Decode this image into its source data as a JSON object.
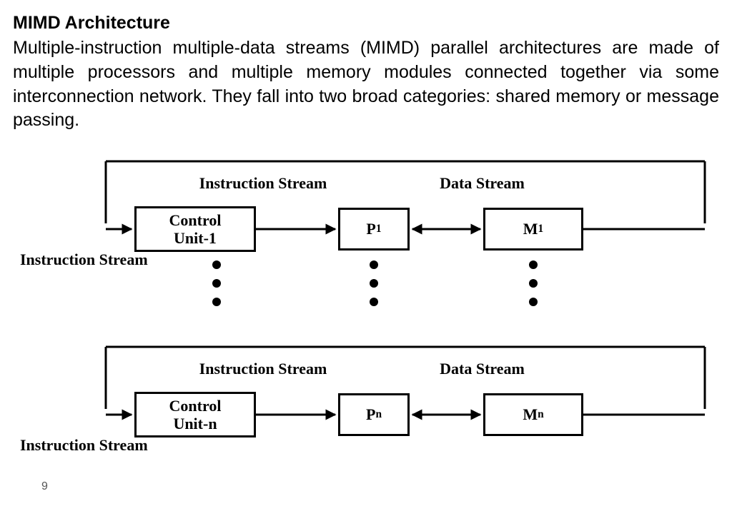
{
  "title": "MIMD Architecture",
  "body": "Multiple-instruction multiple-data streams (MIMD) parallel architectures are made of multiple processors and multiple memory modules connected together via some interconnection network. They fall into two broad categories: shared memory or message passing.",
  "page_number": "9",
  "diagram": {
    "type": "flowchart",
    "background_color": "#ffffff",
    "line_color": "#000000",
    "line_width": 3,
    "font_family": "Times New Roman",
    "label_fontsize": 22,
    "box_fontsize": 22,
    "labels": {
      "is_top1": "Instruction Stream",
      "ds_top1": "Data Stream",
      "is_left1": "Instruction Stream",
      "is_top2": "Instruction Stream",
      "ds_top2": "Data Stream",
      "is_left2": "Instruction Stream"
    },
    "row1": {
      "control": {
        "line1": "Control",
        "line2": "Unit-1"
      },
      "p": {
        "base": "P",
        "sub": "1"
      },
      "m": {
        "base": "M",
        "sub": "1"
      }
    },
    "row2": {
      "control": {
        "line1": "Control",
        "line2": "Unit-n"
      },
      "p": {
        "base": "P",
        "sub": "n"
      },
      "m": {
        "base": "M",
        "sub": "n"
      }
    },
    "layout": {
      "busTopY": 10,
      "busLeftX": 130,
      "busRightX": 968,
      "row1CenterY": 105,
      "row2CenterY": 365,
      "controlX": 255,
      "controlW": 170,
      "controlH": 64,
      "pX": 505,
      "pW": 100,
      "pH": 60,
      "mX": 728,
      "mW": 140,
      "mH": 60
    }
  }
}
